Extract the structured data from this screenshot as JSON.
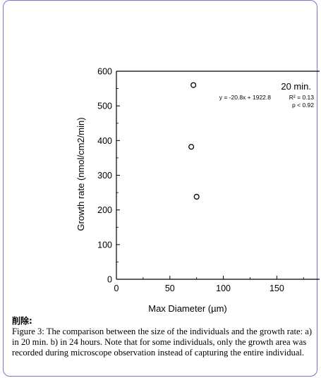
{
  "comment": {
    "deleted_label": "削除:",
    "caption": "Figure 3: The comparison between the size of the individuals and the growth rate: a) in 20 min. b) in 24 hours. Note that for some individuals, only the growth area was recorded during microscope observation instead of capturing the entire individual."
  },
  "chart_data": {
    "type": "scatter",
    "xlabel": "Max Diameter (µm)",
    "ylabel": "Growth rate (nmol/cm2/min)",
    "xlim": [
      0,
      190
    ],
    "ylim": [
      0,
      600
    ],
    "x_ticks": [
      "0",
      "50",
      "100",
      "150"
    ],
    "y_ticks": [
      "0",
      "100",
      "200",
      "300",
      "400",
      "500",
      "600"
    ],
    "points": [
      {
        "x": 72,
        "y": 560
      },
      {
        "x": 70,
        "y": 382
      },
      {
        "x": 75,
        "y": 238
      }
    ],
    "annotations": {
      "panel": "20 min.",
      "equation": "y = -20.8x + 1922.8",
      "r2": "R² = 0.13",
      "p": "p < 0.92"
    },
    "grid": false,
    "marker": "open-circle"
  }
}
